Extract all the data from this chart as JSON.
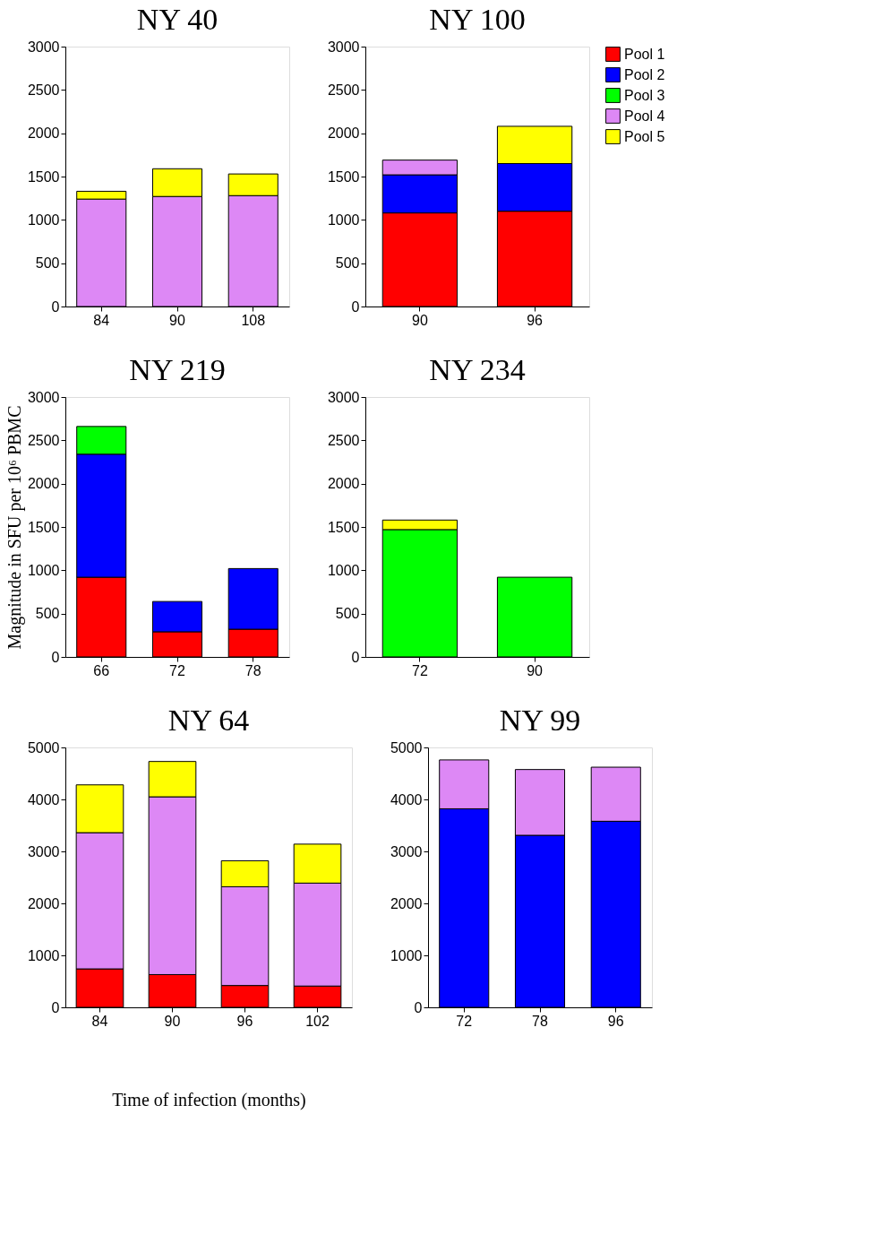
{
  "chart_data": [
    {
      "type": "bar",
      "title": "NY 40",
      "categories": [
        "84",
        "90",
        "108"
      ],
      "stacked": true,
      "ylim": [
        0,
        3000
      ],
      "yticks": [
        0,
        500,
        1000,
        1500,
        2000,
        2500,
        3000
      ],
      "grid": false,
      "series": [
        {
          "color": "#dd88f5",
          "values": [
            1240,
            1270,
            1280
          ]
        },
        {
          "color": "#ffff00",
          "values": [
            90,
            320,
            250
          ]
        }
      ]
    },
    {
      "type": "bar",
      "title": "NY 100",
      "categories": [
        "90",
        "96"
      ],
      "stacked": true,
      "ylim": [
        0,
        3000
      ],
      "yticks": [
        0,
        500,
        1000,
        1500,
        2000,
        2500,
        3000
      ],
      "grid": false,
      "legend": "right",
      "series": [
        {
          "name": "Pool 1",
          "color": "#ff0000",
          "values": [
            1080,
            1100
          ]
        },
        {
          "name": "Pool 2",
          "color": "#0000ff",
          "values": [
            440,
            550
          ]
        },
        {
          "name": "Pool 3",
          "color": "#00ff00",
          "values": [
            null,
            null
          ]
        },
        {
          "name": "Pool 4",
          "color": "#dd88f5",
          "values": [
            170,
            null
          ]
        },
        {
          "name": "Pool 5",
          "color": "#ffff00",
          "values": [
            null,
            430
          ]
        }
      ]
    },
    {
      "type": "bar",
      "title": "NY 219",
      "ylabel": "Magnitude in SFU per 10⁶ PBMC",
      "categories": [
        "66",
        "72",
        "78"
      ],
      "stacked": true,
      "ylim": [
        0,
        3000
      ],
      "yticks": [
        0,
        500,
        1000,
        1500,
        2000,
        2500,
        3000
      ],
      "grid": false,
      "series": [
        {
          "color": "#ff0000",
          "values": [
            920,
            290,
            320
          ]
        },
        {
          "color": "#0000ff",
          "values": [
            1420,
            350,
            700
          ]
        },
        {
          "color": "#00ff00",
          "values": [
            320,
            null,
            null
          ]
        }
      ]
    },
    {
      "type": "bar",
      "title": "NY 234",
      "categories": [
        "72",
        "90"
      ],
      "stacked": true,
      "ylim": [
        0,
        3000
      ],
      "yticks": [
        0,
        500,
        1000,
        1500,
        2000,
        2500,
        3000
      ],
      "grid": false,
      "series": [
        {
          "color": "#00ff00",
          "values": [
            1470,
            920
          ]
        },
        {
          "color": "#ffff00",
          "values": [
            110,
            null
          ]
        }
      ]
    },
    {
      "type": "bar",
      "title": "NY 64",
      "xlabel": "Time of infection (months)",
      "categories": [
        "84",
        "90",
        "96",
        "102"
      ],
      "stacked": true,
      "ylim": [
        0,
        5000
      ],
      "yticks": [
        0,
        1000,
        2000,
        3000,
        4000,
        5000
      ],
      "grid": false,
      "series": [
        {
          "color": "#ff0000",
          "values": [
            740,
            630,
            420,
            410
          ]
        },
        {
          "color": "#dd88f5",
          "values": [
            2620,
            3420,
            1900,
            1980
          ]
        },
        {
          "color": "#ffff00",
          "values": [
            920,
            680,
            500,
            750
          ]
        }
      ]
    },
    {
      "type": "bar",
      "title": "NY 99",
      "categories": [
        "72",
        "78",
        "96"
      ],
      "stacked": true,
      "ylim": [
        0,
        5000
      ],
      "yticks": [
        0,
        1000,
        2000,
        3000,
        4000,
        5000
      ],
      "grid": false,
      "series": [
        {
          "color": "#0000ff",
          "values": [
            3820,
            3310,
            3580
          ]
        },
        {
          "color": "#dd88f5",
          "values": [
            940,
            1265,
            1040
          ]
        }
      ]
    }
  ]
}
